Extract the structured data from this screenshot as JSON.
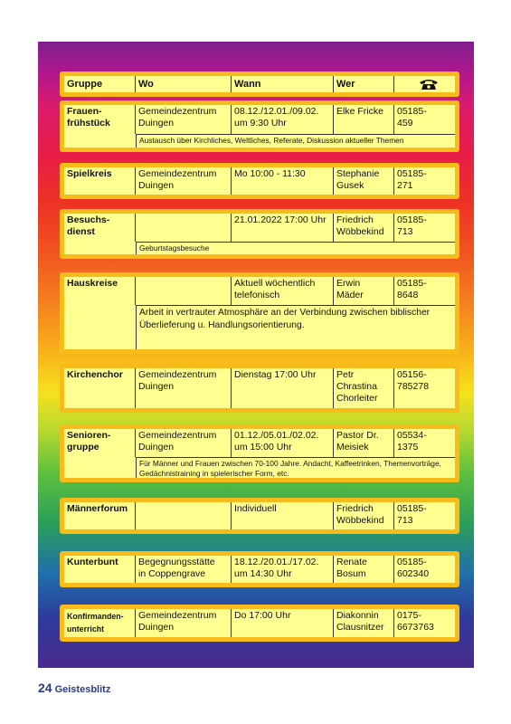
{
  "header": {
    "gruppe": "Gruppe",
    "wo": "Wo",
    "wann": "Wann",
    "wer": "Wer"
  },
  "rows": [
    {
      "gruppe": "Frauen-\nfrühstück",
      "wo": "Gemeindezentrum\nDuingen",
      "wann": "08.12./12.01./09.02.\num 9:30 Uhr",
      "wer": "Elke Fricke",
      "tel": "05185-\n459",
      "note": "Austausch über Kirchliches, Weltliches, Referate, Diskussion aktueller Themen"
    },
    {
      "gruppe": "Spielkreis",
      "wo": "Gemeindezentrum\nDuingen",
      "wann": "Mo 10:00 - 11:30",
      "wer": "Stephanie\nGusek",
      "tel": "05185-\n271"
    },
    {
      "gruppe": "Besuchs-\ndienst",
      "wo": "",
      "wann": "21.01.2022 17:00 Uhr",
      "wer": "Friedrich\nWöbbekind",
      "tel": "05185-\n713",
      "note": "Geburtstagsbesuche"
    },
    {
      "gruppe": "Hauskreise",
      "wo": "",
      "wann": "Aktuell wöchentlich\ntelefonisch",
      "wer": "Erwin\nMäder",
      "tel": "05185-\n8648",
      "note": "Arbeit in vertrauter Atmosphäre an der Verbindung zwischen biblischer Überlieferung u. Handlungsorientierung."
    },
    {
      "gruppe": "Kirchenchor",
      "wo": "Gemeindezentrum\nDuingen",
      "wann": "Dienstag 17:00 Uhr",
      "wer": "Petr\nChrastina\nChorleiter",
      "tel": "05156-\n785278"
    },
    {
      "gruppe": "Senioren-\ngruppe",
      "wo": "Gemeindezentrum\nDuingen",
      "wann": "01.12./05.01./02.02.\num 15:00 Uhr",
      "wer": "Pastor Dr.\nMeisiek",
      "tel": "05534-\n1375",
      "note": "Für Männer und Frauen zwischen 70-100 Jahre. Andacht, Kaffeetrinken, Themenvorträge, Gedächnistraining in spielerischer Form, etc."
    },
    {
      "gruppe": "Männerforum",
      "wo": "",
      "wann": "Individuell",
      "wer": "Friedrich\nWöbbekind",
      "tel": "05185-\n713"
    },
    {
      "gruppe": "Kunterbunt",
      "wo": "Begegnungsstätte\nin Coppengrave",
      "wann": "18.12./20.01./17.02.\num 14:30 Uhr",
      "wer": "Renate\nBosum",
      "tel": "05185-\n602340"
    },
    {
      "gruppe": "Konfirmanden-\nunterricht",
      "wo": "Gemeindezentrum\nDuingen",
      "wann": "Do 17:00 Uhr",
      "wer": "Diakonnin\nClausnitzer",
      "tel": "0175-\n6673763"
    }
  ],
  "footer": {
    "page": "24",
    "magazine": "Geistesblitz"
  },
  "colors": {
    "table_fill": "#ffff91",
    "table_frame": "#f7bc1c",
    "footer_text": "#2b3a8a"
  },
  "icons": {
    "phone_header": "telephone-icon"
  }
}
